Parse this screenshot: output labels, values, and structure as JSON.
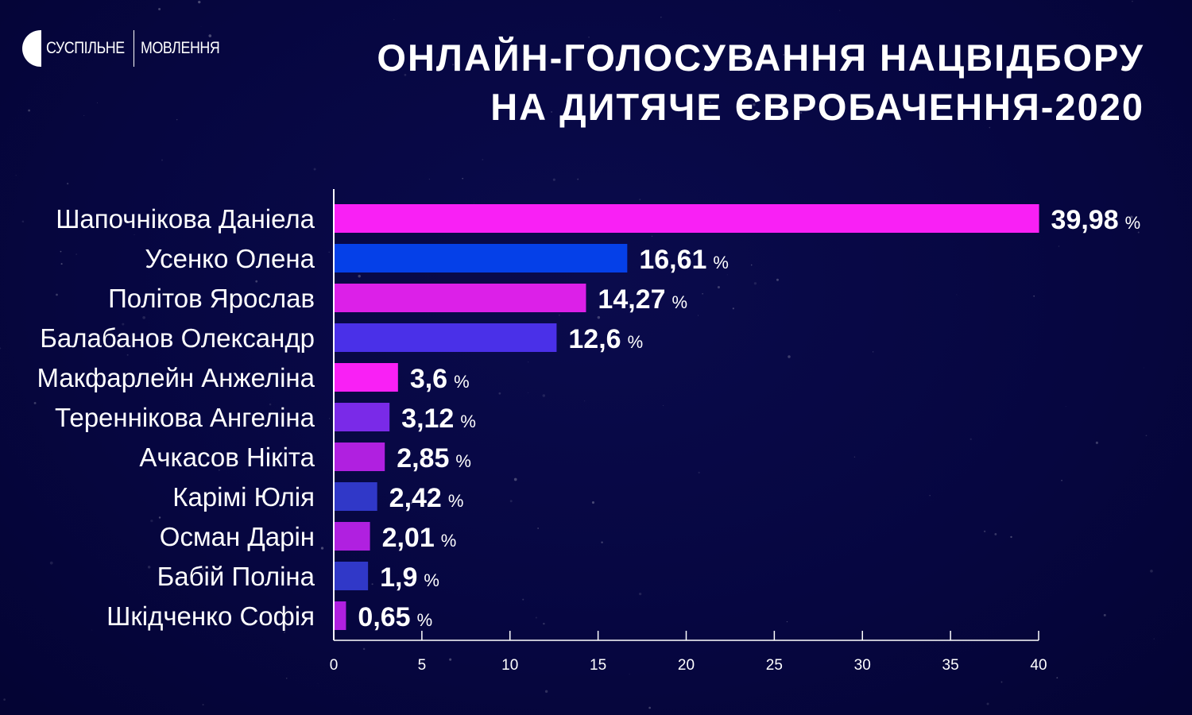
{
  "logo": {
    "left": "СУСПІЛЬНЕ",
    "right": "МОВЛЕННЯ"
  },
  "chart_data": {
    "type": "bar",
    "orientation": "horizontal",
    "title": [
      "ОНЛАЙН-ГОЛОСУВАННЯ НАЦВІДБОРУ",
      "НА ДИТЯЧЕ ЄВРОБАЧЕННЯ-2020"
    ],
    "categories": [
      "Шапочнікова Даніела",
      "Усенко Олена",
      "Політов Ярослав",
      "Балабанов Олександр",
      "Макфарлейн Анжеліна",
      "Тереннікова Ангеліна",
      "Ачкасов Нікіта",
      "Карімі Юлія",
      "Осман Дарін",
      "Бабій Поліна",
      "Шкідченко Софія"
    ],
    "values": [
      39.98,
      16.61,
      14.27,
      12.6,
      3.6,
      3.12,
      2.85,
      2.42,
      2.01,
      1.9,
      0.65
    ],
    "labels": [
      "39,98",
      "16,61",
      "14,27",
      "12,6",
      "3,6",
      "3,12",
      "2,85",
      "2,42",
      "2,01",
      "1,9",
      "0,65"
    ],
    "unit": "%",
    "colors": [
      "#f920f5",
      "#0540e8",
      "#dc20e8",
      "#4a30e8",
      "#f920f5",
      "#7a2ae8",
      "#b020e0",
      "#3038c8",
      "#b020e0",
      "#3038c8",
      "#b020e0"
    ],
    "xticks": [
      0,
      5,
      10,
      15,
      20,
      25,
      30,
      35,
      40
    ],
    "xlim": [
      0,
      40
    ],
    "xlabel": "",
    "ylabel": "",
    "grid": false
  }
}
